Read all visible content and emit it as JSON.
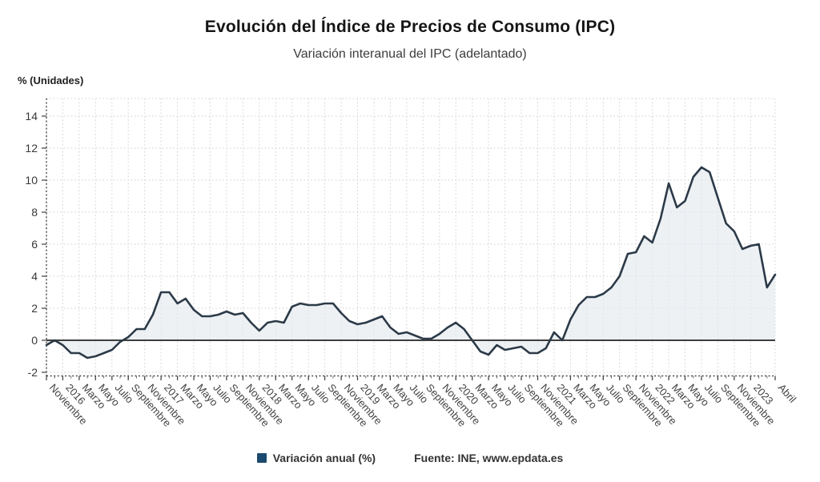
{
  "header": {
    "title": "Evolución del Índice de Precios de Consumo (IPC)",
    "subtitle": "Variación interanual del IPC (adelantado)"
  },
  "axis": {
    "y_unit_label": "% (Unidades)"
  },
  "legend": {
    "series_label": "Variación anual (%)",
    "source_label": "Fuente: INE, www.epdata.es",
    "swatch_color": "#1b4a6e"
  },
  "colors": {
    "line": "#2c3a48",
    "area_fill": "#e3e9ee",
    "area_opacity": 0.65,
    "grid": "#cfd2d6",
    "axis": "#4a4a4a",
    "zero_line": "#3e3e3e",
    "background": "#ffffff"
  },
  "chart_data": {
    "type": "area",
    "title": "Evolución del Índice de Precios de Consumo (IPC)",
    "subtitle": "Variación interanual del IPC (adelantado)",
    "ylabel": "% (Unidades)",
    "xlabel": "",
    "ylim": [
      -2,
      15.1
    ],
    "y_ticks": [
      -2,
      0,
      2,
      4,
      6,
      8,
      10,
      12,
      14
    ],
    "grid": true,
    "legend_position": "bottom",
    "source": "Fuente: INE, www.epdata.es",
    "x": [
      "Nov 2015",
      "Dic 2015",
      "Ene 2016",
      "Feb 2016",
      "Mar 2016",
      "Abr 2016",
      "May 2016",
      "Jun 2016",
      "Jul 2016",
      "Ago 2016",
      "Sep 2016",
      "Oct 2016",
      "Nov 2016",
      "Dic 2016",
      "Ene 2017",
      "Feb 2017",
      "Mar 2017",
      "Abr 2017",
      "May 2017",
      "Jun 2017",
      "Jul 2017",
      "Ago 2017",
      "Sep 2017",
      "Oct 2017",
      "Nov 2017",
      "Dic 2017",
      "Ene 2018",
      "Feb 2018",
      "Mar 2018",
      "Abr 2018",
      "May 2018",
      "Jun 2018",
      "Jul 2018",
      "Ago 2018",
      "Sep 2018",
      "Oct 2018",
      "Nov 2018",
      "Dic 2018",
      "Ene 2019",
      "Feb 2019",
      "Mar 2019",
      "Abr 2019",
      "May 2019",
      "Jun 2019",
      "Jul 2019",
      "Ago 2019",
      "Sep 2019",
      "Oct 2019",
      "Nov 2019",
      "Dic 2019",
      "Ene 2020",
      "Feb 2020",
      "Mar 2020",
      "Abr 2020",
      "May 2020",
      "Jun 2020",
      "Jul 2020",
      "Ago 2020",
      "Sep 2020",
      "Oct 2020",
      "Nov 2020",
      "Dic 2020",
      "Ene 2021",
      "Feb 2021",
      "Mar 2021",
      "Abr 2021",
      "May 2021",
      "Jun 2021",
      "Jul 2021",
      "Ago 2021",
      "Sep 2021",
      "Oct 2021",
      "Nov 2021",
      "Dic 2021",
      "Ene 2022",
      "Feb 2022",
      "Mar 2022",
      "Abr 2022",
      "May 2022",
      "Jun 2022",
      "Jul 2022",
      "Ago 2022",
      "Sep 2022",
      "Oct 2022",
      "Nov 2022",
      "Dic 2022",
      "Ene 2023",
      "Feb 2023",
      "Mar 2023",
      "Abr 2023"
    ],
    "series": [
      {
        "name": "Variación anual (%)",
        "values": [
          -0.3,
          0.0,
          -0.3,
          -0.8,
          -0.8,
          -1.1,
          -1.0,
          -0.8,
          -0.6,
          -0.1,
          0.2,
          0.7,
          0.7,
          1.6,
          3.0,
          3.0,
          2.3,
          2.6,
          1.9,
          1.5,
          1.5,
          1.6,
          1.8,
          1.6,
          1.7,
          1.1,
          0.6,
          1.1,
          1.2,
          1.1,
          2.1,
          2.3,
          2.2,
          2.2,
          2.3,
          2.3,
          1.7,
          1.2,
          1.0,
          1.1,
          1.3,
          1.5,
          0.8,
          0.4,
          0.5,
          0.3,
          0.1,
          0.1,
          0.4,
          0.8,
          1.1,
          0.7,
          0.0,
          -0.7,
          -0.9,
          -0.3,
          -0.6,
          -0.5,
          -0.4,
          -0.8,
          -0.8,
          -0.5,
          0.5,
          0.0,
          1.3,
          2.2,
          2.7,
          2.7,
          2.9,
          3.3,
          4.0,
          5.4,
          5.5,
          6.5,
          6.1,
          7.6,
          9.8,
          8.3,
          8.7,
          10.2,
          10.8,
          10.5,
          8.9,
          7.3,
          6.8,
          5.7,
          5.9,
          6.0,
          3.3,
          4.1
        ]
      }
    ],
    "x_tick_labels": [
      {
        "i": 0,
        "label": "Noviembre"
      },
      {
        "i": 2,
        "label": "2016"
      },
      {
        "i": 4,
        "label": "Marzo"
      },
      {
        "i": 6,
        "label": "Mayo"
      },
      {
        "i": 8,
        "label": "Julio"
      },
      {
        "i": 10,
        "label": "Septiembre"
      },
      {
        "i": 12,
        "label": "Noviembre"
      },
      {
        "i": 14,
        "label": "2017"
      },
      {
        "i": 16,
        "label": "Marzo"
      },
      {
        "i": 18,
        "label": "Mayo"
      },
      {
        "i": 20,
        "label": "Julio"
      },
      {
        "i": 22,
        "label": "Septiembre"
      },
      {
        "i": 24,
        "label": "Noviembre"
      },
      {
        "i": 26,
        "label": "2018"
      },
      {
        "i": 28,
        "label": "Marzo"
      },
      {
        "i": 30,
        "label": "Mayo"
      },
      {
        "i": 32,
        "label": "Julio"
      },
      {
        "i": 34,
        "label": "Septiembre"
      },
      {
        "i": 36,
        "label": "Noviembre"
      },
      {
        "i": 38,
        "label": "2019"
      },
      {
        "i": 40,
        "label": "Marzo"
      },
      {
        "i": 42,
        "label": "Mayo"
      },
      {
        "i": 44,
        "label": "Julio"
      },
      {
        "i": 46,
        "label": "Septiembre"
      },
      {
        "i": 48,
        "label": "Noviembre"
      },
      {
        "i": 50,
        "label": "2020"
      },
      {
        "i": 52,
        "label": "Marzo"
      },
      {
        "i": 54,
        "label": "Mayo"
      },
      {
        "i": 56,
        "label": "Julio"
      },
      {
        "i": 58,
        "label": "Septiembre"
      },
      {
        "i": 60,
        "label": "Noviembre"
      },
      {
        "i": 62,
        "label": "2021"
      },
      {
        "i": 64,
        "label": "Marzo"
      },
      {
        "i": 66,
        "label": "Mayo"
      },
      {
        "i": 68,
        "label": "Julio"
      },
      {
        "i": 70,
        "label": "Septiembre"
      },
      {
        "i": 72,
        "label": "Noviembre"
      },
      {
        "i": 74,
        "label": "2022"
      },
      {
        "i": 76,
        "label": "Marzo"
      },
      {
        "i": 78,
        "label": "Mayo"
      },
      {
        "i": 80,
        "label": "Julio"
      },
      {
        "i": 82,
        "label": "Septiembre"
      },
      {
        "i": 84,
        "label": "Noviembre"
      },
      {
        "i": 86,
        "label": "2023"
      },
      {
        "i": 89,
        "label": "Abril"
      }
    ]
  }
}
